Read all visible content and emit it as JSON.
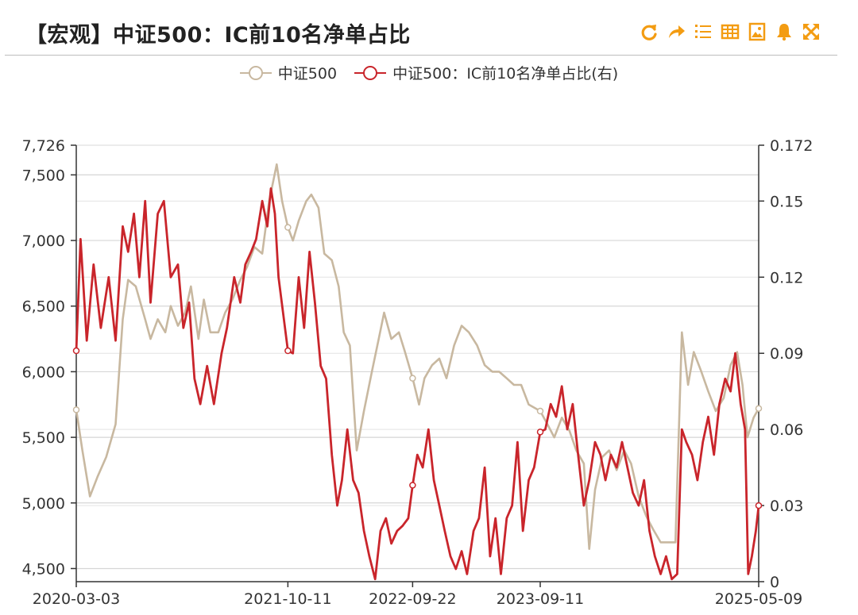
{
  "title": "【宏观】中证500：IC前10名净单占比",
  "toolbar": {
    "icons": [
      "refresh-icon",
      "share-icon",
      "list-icon",
      "table-icon",
      "image-icon",
      "bell-icon",
      "fullscreen-icon"
    ],
    "color": "#f39c12"
  },
  "chart_data": {
    "type": "line",
    "title": "【宏观】中证500：IC前10名净单占比",
    "legend_position": "top-center",
    "grid": true,
    "x_ticks": [
      "2020-03-03",
      "2021-10-11",
      "2022-09-22",
      "2023-09-11",
      "2025-05-09"
    ],
    "y_left": {
      "ticks": [
        "7,726",
        "7,500",
        "7,000",
        "6,500",
        "6,000",
        "5,500",
        "5,000",
        "4,500"
      ],
      "range": [
        4400,
        7726
      ]
    },
    "y_right": {
      "ticks": [
        "0.172",
        "0.15",
        "0.12",
        "0.09",
        "0.06",
        "0.03",
        "0"
      ],
      "range": [
        0,
        0.172
      ]
    },
    "series": [
      {
        "name": "中证500",
        "axis": "left",
        "color": "#c8b8a0",
        "points": [
          [
            "2020-03-03",
            5710
          ],
          [
            "2020-03-20",
            5400
          ],
          [
            "2020-04-10",
            5050
          ],
          [
            "2020-05-01",
            5200
          ],
          [
            "2020-05-25",
            5350
          ],
          [
            "2020-06-20",
            5600
          ],
          [
            "2020-07-10",
            6400
          ],
          [
            "2020-07-25",
            6700
          ],
          [
            "2020-08-15",
            6650
          ],
          [
            "2020-09-10",
            6400
          ],
          [
            "2020-09-25",
            6250
          ],
          [
            "2020-10-15",
            6400
          ],
          [
            "2020-11-05",
            6300
          ],
          [
            "2020-11-20",
            6500
          ],
          [
            "2020-12-10",
            6350
          ],
          [
            "2020-12-30",
            6450
          ],
          [
            "2021-01-15",
            6650
          ],
          [
            "2021-02-05",
            6250
          ],
          [
            "2021-02-20",
            6550
          ],
          [
            "2021-03-10",
            6300
          ],
          [
            "2021-04-01",
            6300
          ],
          [
            "2021-04-20",
            6450
          ],
          [
            "2021-05-10",
            6550
          ],
          [
            "2021-06-01",
            6700
          ],
          [
            "2021-06-20",
            6800
          ],
          [
            "2021-07-10",
            6950
          ],
          [
            "2021-08-01",
            6900
          ],
          [
            "2021-08-20",
            7300
          ],
          [
            "2021-09-10",
            7580
          ],
          [
            "2021-09-25",
            7300
          ],
          [
            "2021-10-11",
            7100
          ],
          [
            "2021-10-25",
            7000
          ],
          [
            "2021-11-10",
            7150
          ],
          [
            "2021-12-01",
            7300
          ],
          [
            "2021-12-15",
            7350
          ],
          [
            "2022-01-04",
            7250
          ],
          [
            "2022-01-20",
            6900
          ],
          [
            "2022-02-10",
            6850
          ],
          [
            "2022-03-01",
            6650
          ],
          [
            "2022-03-15",
            6300
          ],
          [
            "2022-04-01",
            6200
          ],
          [
            "2022-04-20",
            5400
          ],
          [
            "2022-05-10",
            5700
          ],
          [
            "2022-06-01",
            6000
          ],
          [
            "2022-06-20",
            6250
          ],
          [
            "2022-07-05",
            6450
          ],
          [
            "2022-07-25",
            6250
          ],
          [
            "2022-08-15",
            6300
          ],
          [
            "2022-09-01",
            6150
          ],
          [
            "2022-09-22",
            5950
          ],
          [
            "2022-10-10",
            5750
          ],
          [
            "2022-10-25",
            5950
          ],
          [
            "2022-11-15",
            6050
          ],
          [
            "2022-12-05",
            6100
          ],
          [
            "2022-12-25",
            5950
          ],
          [
            "2023-01-15",
            6200
          ],
          [
            "2023-02-05",
            6350
          ],
          [
            "2023-02-25",
            6300
          ],
          [
            "2023-03-20",
            6200
          ],
          [
            "2023-04-10",
            6050
          ],
          [
            "2023-05-01",
            6000
          ],
          [
            "2023-05-20",
            6000
          ],
          [
            "2023-06-10",
            5950
          ],
          [
            "2023-06-30",
            5900
          ],
          [
            "2023-07-20",
            5900
          ],
          [
            "2023-08-10",
            5750
          ],
          [
            "2023-09-11",
            5700
          ],
          [
            "2023-10-01",
            5600
          ],
          [
            "2023-10-20",
            5500
          ],
          [
            "2023-11-10",
            5650
          ],
          [
            "2023-12-01",
            5550
          ],
          [
            "2023-12-20",
            5400
          ],
          [
            "2024-01-10",
            5300
          ],
          [
            "2024-01-25",
            4650
          ],
          [
            "2024-02-10",
            5100
          ],
          [
            "2024-03-01",
            5350
          ],
          [
            "2024-03-20",
            5400
          ],
          [
            "2024-04-10",
            5250
          ],
          [
            "2024-05-01",
            5400
          ],
          [
            "2024-05-20",
            5300
          ],
          [
            "2024-06-10",
            5050
          ],
          [
            "2024-07-01",
            4900
          ],
          [
            "2024-07-20",
            4800
          ],
          [
            "2024-08-10",
            4700
          ],
          [
            "2024-09-01",
            4700
          ],
          [
            "2024-09-20",
            4700
          ],
          [
            "2024-10-08",
            6300
          ],
          [
            "2024-10-25",
            5900
          ],
          [
            "2024-11-10",
            6150
          ],
          [
            "2024-12-01",
            6000
          ],
          [
            "2024-12-20",
            5850
          ],
          [
            "2025-01-10",
            5700
          ],
          [
            "2025-02-01",
            5800
          ],
          [
            "2025-02-20",
            6050
          ],
          [
            "2025-03-10",
            6150
          ],
          [
            "2025-03-25",
            5900
          ],
          [
            "2025-04-08",
            5500
          ],
          [
            "2025-04-25",
            5650
          ],
          [
            "2025-05-09",
            5720
          ]
        ]
      },
      {
        "name": "中证500：IC前10名净单占比(右)",
        "axis": "right",
        "color": "#c9252b",
        "points": [
          [
            "2020-03-03",
            0.091
          ],
          [
            "2020-03-15",
            0.135
          ],
          [
            "2020-04-01",
            0.095
          ],
          [
            "2020-04-20",
            0.125
          ],
          [
            "2020-05-10",
            0.1
          ],
          [
            "2020-06-01",
            0.12
          ],
          [
            "2020-06-20",
            0.095
          ],
          [
            "2020-07-10",
            0.14
          ],
          [
            "2020-07-25",
            0.13
          ],
          [
            "2020-08-10",
            0.145
          ],
          [
            "2020-08-25",
            0.12
          ],
          [
            "2020-09-10",
            0.15
          ],
          [
            "2020-09-25",
            0.11
          ],
          [
            "2020-10-15",
            0.145
          ],
          [
            "2020-11-01",
            0.15
          ],
          [
            "2020-11-20",
            0.12
          ],
          [
            "2020-12-10",
            0.125
          ],
          [
            "2020-12-25",
            0.1
          ],
          [
            "2021-01-10",
            0.11
          ],
          [
            "2021-01-25",
            0.08
          ],
          [
            "2021-02-10",
            0.07
          ],
          [
            "2021-03-01",
            0.085
          ],
          [
            "2021-03-20",
            0.07
          ],
          [
            "2021-04-10",
            0.09
          ],
          [
            "2021-04-25",
            0.1
          ],
          [
            "2021-05-15",
            0.12
          ],
          [
            "2021-06-01",
            0.11
          ],
          [
            "2021-06-15",
            0.125
          ],
          [
            "2021-07-01",
            0.13
          ],
          [
            "2021-07-15",
            0.135
          ],
          [
            "2021-08-01",
            0.15
          ],
          [
            "2021-08-15",
            0.14
          ],
          [
            "2021-08-25",
            0.155
          ],
          [
            "2021-09-05",
            0.145
          ],
          [
            "2021-09-15",
            0.12
          ],
          [
            "2021-10-11",
            0.091
          ],
          [
            "2021-10-25",
            0.09
          ],
          [
            "2021-11-10",
            0.12
          ],
          [
            "2021-11-25",
            0.1
          ],
          [
            "2021-12-10",
            0.13
          ],
          [
            "2021-12-25",
            0.11
          ],
          [
            "2022-01-10",
            0.085
          ],
          [
            "2022-01-25",
            0.08
          ],
          [
            "2022-02-10",
            0.05
          ],
          [
            "2022-02-25",
            0.03
          ],
          [
            "2022-03-10",
            0.04
          ],
          [
            "2022-03-25",
            0.06
          ],
          [
            "2022-04-10",
            0.04
          ],
          [
            "2022-04-25",
            0.035
          ],
          [
            "2022-05-10",
            0.02
          ],
          [
            "2022-05-25",
            0.01
          ],
          [
            "2022-06-10",
            0.001
          ],
          [
            "2022-06-25",
            0.02
          ],
          [
            "2022-07-10",
            0.025
          ],
          [
            "2022-07-25",
            0.015
          ],
          [
            "2022-08-10",
            0.02
          ],
          [
            "2022-08-25",
            0.022
          ],
          [
            "2022-09-10",
            0.025
          ],
          [
            "2022-09-22",
            0.038
          ],
          [
            "2022-10-05",
            0.05
          ],
          [
            "2022-10-20",
            0.045
          ],
          [
            "2022-11-05",
            0.06
          ],
          [
            "2022-11-20",
            0.04
          ],
          [
            "2022-12-05",
            0.03
          ],
          [
            "2022-12-20",
            0.02
          ],
          [
            "2023-01-05",
            0.01
          ],
          [
            "2023-01-20",
            0.005
          ],
          [
            "2023-02-05",
            0.012
          ],
          [
            "2023-02-20",
            0.003
          ],
          [
            "2023-03-10",
            0.02
          ],
          [
            "2023-03-25",
            0.025
          ],
          [
            "2023-04-10",
            0.045
          ],
          [
            "2023-04-25",
            0.01
          ],
          [
            "2023-05-10",
            0.025
          ],
          [
            "2023-05-25",
            0.003
          ],
          [
            "2023-06-10",
            0.025
          ],
          [
            "2023-06-25",
            0.03
          ],
          [
            "2023-07-10",
            0.055
          ],
          [
            "2023-07-25",
            0.02
          ],
          [
            "2023-08-10",
            0.04
          ],
          [
            "2023-08-25",
            0.045
          ],
          [
            "2023-09-11",
            0.059
          ],
          [
            "2023-09-25",
            0.06
          ],
          [
            "2023-10-10",
            0.07
          ],
          [
            "2023-10-25",
            0.065
          ],
          [
            "2023-11-10",
            0.077
          ],
          [
            "2023-11-25",
            0.06
          ],
          [
            "2023-12-10",
            0.07
          ],
          [
            "2023-12-25",
            0.05
          ],
          [
            "2024-01-10",
            0.03
          ],
          [
            "2024-01-25",
            0.04
          ],
          [
            "2024-02-10",
            0.055
          ],
          [
            "2024-02-25",
            0.05
          ],
          [
            "2024-03-10",
            0.04
          ],
          [
            "2024-03-25",
            0.05
          ],
          [
            "2024-04-10",
            0.045
          ],
          [
            "2024-04-25",
            0.055
          ],
          [
            "2024-05-10",
            0.045
          ],
          [
            "2024-05-25",
            0.035
          ],
          [
            "2024-06-10",
            0.03
          ],
          [
            "2024-06-25",
            0.04
          ],
          [
            "2024-07-10",
            0.02
          ],
          [
            "2024-07-25",
            0.01
          ],
          [
            "2024-08-10",
            0.003
          ],
          [
            "2024-08-25",
            0.01
          ],
          [
            "2024-09-10",
            0.001
          ],
          [
            "2024-09-25",
            0.003
          ],
          [
            "2024-10-08",
            0.06
          ],
          [
            "2024-10-20",
            0.055
          ],
          [
            "2024-11-05",
            0.05
          ],
          [
            "2024-11-20",
            0.04
          ],
          [
            "2024-12-05",
            0.055
          ],
          [
            "2024-12-20",
            0.065
          ],
          [
            "2025-01-05",
            0.05
          ],
          [
            "2025-01-20",
            0.07
          ],
          [
            "2025-02-05",
            0.08
          ],
          [
            "2025-02-20",
            0.075
          ],
          [
            "2025-03-05",
            0.09
          ],
          [
            "2025-03-20",
            0.07
          ],
          [
            "2025-04-01",
            0.06
          ],
          [
            "2025-04-10",
            0.003
          ],
          [
            "2025-04-20",
            0.01
          ],
          [
            "2025-05-01",
            0.02
          ],
          [
            "2025-05-09",
            0.03
          ]
        ]
      }
    ]
  }
}
